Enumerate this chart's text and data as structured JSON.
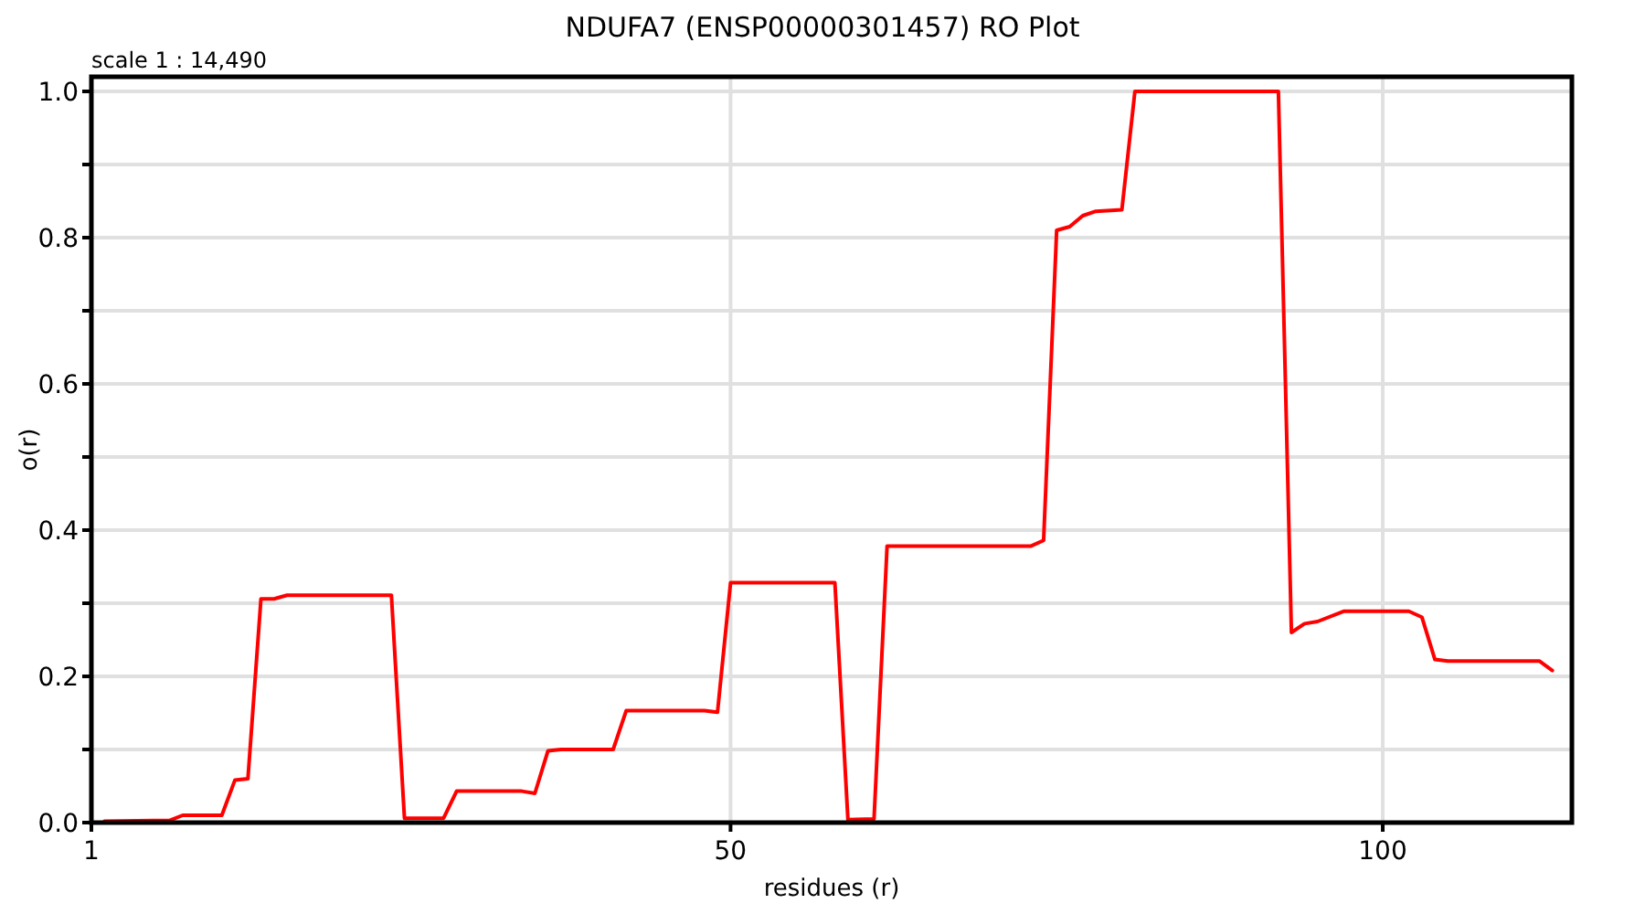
{
  "chart_data": {
    "type": "line",
    "title": "NDUFA7 (ENSP00000301457) RO Plot",
    "xlabel": "residues (r)",
    "ylabel": "o(r)",
    "annotations": [
      "scale 1 : 14,490"
    ],
    "x": [
      2,
      7,
      8,
      11,
      12,
      13,
      14,
      15,
      16,
      24,
      25,
      28,
      29,
      34,
      35,
      36,
      37,
      41,
      42,
      48,
      49,
      50,
      58,
      59,
      61,
      62,
      73,
      74,
      75,
      76,
      77,
      78,
      80,
      81,
      92,
      93,
      94,
      95,
      97,
      102,
      103,
      104,
      105,
      112,
      113
    ],
    "series": [
      {
        "color": "#ff0000",
        "values": [
          0.002,
          0.003,
          0.01,
          0.01,
          0.058,
          0.06,
          0.306,
          0.306,
          0.311,
          0.311,
          0.006,
          0.006,
          0.043,
          0.043,
          0.04,
          0.098,
          0.1,
          0.1,
          0.153,
          0.153,
          0.151,
          0.328,
          0.328,
          0.004,
          0.005,
          0.378,
          0.378,
          0.386,
          0.81,
          0.815,
          0.83,
          0.836,
          0.838,
          1.0,
          1.0,
          0.26,
          0.272,
          0.275,
          0.289,
          0.289,
          0.281,
          0.223,
          0.221,
          0.221,
          0.208
        ]
      }
    ],
    "xlim": [
      1,
      114.5
    ],
    "xticks": [
      1,
      50,
      100
    ],
    "ylim": [
      0,
      1.02
    ],
    "yticks": [
      {
        "value": 0,
        "label": "0.0"
      },
      {
        "value": 0.1,
        "label": null
      },
      {
        "value": 0.2,
        "label": "0.2"
      },
      {
        "value": 0.3,
        "label": null
      },
      {
        "value": 0.4,
        "label": "0.4"
      },
      {
        "value": 0.5,
        "label": null
      },
      {
        "value": 0.6,
        "label": "0.6"
      },
      {
        "value": 0.7,
        "label": null
      },
      {
        "value": 0.8,
        "label": "0.8"
      },
      {
        "value": 0.9,
        "label": null
      },
      {
        "value": 1,
        "label": "1.0"
      }
    ],
    "grid": true,
    "marker": "none",
    "line_style": "solid"
  }
}
